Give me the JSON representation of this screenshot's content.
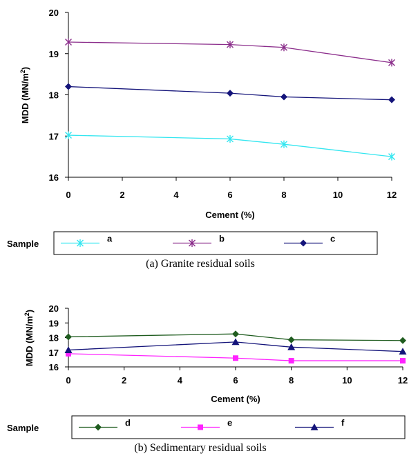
{
  "chart_data": [
    {
      "type": "line",
      "caption": "(a) Granite residual soils",
      "xlabel": "Cement (%)",
      "ylabel_prefix": "MDD (MN/m",
      "ylabel_sup": "2",
      "ylabel_suffix": ")",
      "xlim": [
        0,
        12
      ],
      "ylim": [
        16,
        20
      ],
      "xticks": [
        "0",
        "2",
        "4",
        "6",
        "8",
        "10",
        "12"
      ],
      "yticks": [
        "16",
        "17",
        "18",
        "19",
        "20"
      ],
      "legend_title": "Sample",
      "legend_position": "bottom",
      "grid": false,
      "series": [
        {
          "name": "a",
          "color": "#33e6f0",
          "marker": "asterisk",
          "x": [
            0,
            6,
            8,
            12
          ],
          "y": [
            17.02,
            16.93,
            16.8,
            16.5
          ]
        },
        {
          "name": "b",
          "color": "#8b2d8b",
          "marker": "asterisk",
          "x": [
            0,
            6,
            8,
            12
          ],
          "y": [
            19.28,
            19.22,
            19.15,
            18.78
          ]
        },
        {
          "name": "c",
          "color": "#14147a",
          "marker": "diamond",
          "x": [
            0,
            6,
            8,
            12
          ],
          "y": [
            18.2,
            18.04,
            17.95,
            17.88
          ]
        }
      ]
    },
    {
      "type": "line",
      "caption": "(b) Sedimentary residual soils",
      "xlabel": "Cement (%)",
      "ylabel_prefix": "MDD (MN/m",
      "ylabel_sup": "2",
      "ylabel_suffix": ")",
      "xlim": [
        0,
        12
      ],
      "ylim": [
        16,
        20
      ],
      "xticks": [
        "0",
        "2",
        "4",
        "6",
        "8",
        "10",
        "12"
      ],
      "yticks": [
        "16",
        "17",
        "18",
        "19",
        "20"
      ],
      "legend_title": "Sample",
      "legend_position": "bottom",
      "grid": false,
      "series": [
        {
          "name": "d",
          "color": "#1f5c1f",
          "marker": "diamond",
          "x": [
            0,
            6,
            8,
            12
          ],
          "y": [
            18.05,
            18.25,
            17.85,
            17.8
          ]
        },
        {
          "name": "e",
          "color": "#ff22ff",
          "marker": "square",
          "x": [
            0,
            6,
            8,
            12
          ],
          "y": [
            16.9,
            16.6,
            16.42,
            16.42
          ]
        },
        {
          "name": "f",
          "color": "#14147a",
          "marker": "triangle",
          "x": [
            0,
            6,
            8,
            12
          ],
          "y": [
            17.15,
            17.7,
            17.35,
            17.05
          ]
        }
      ]
    }
  ]
}
